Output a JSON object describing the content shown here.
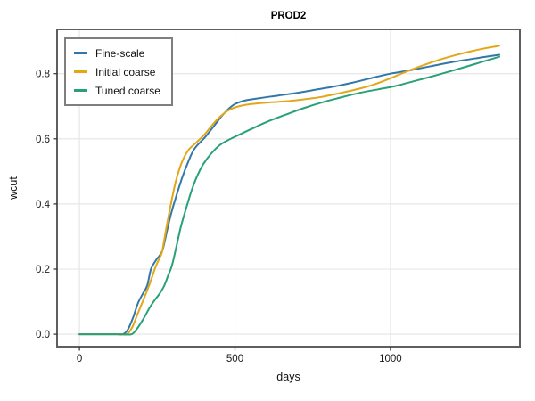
{
  "figure": {
    "title": "PROD2",
    "xlabel": "days",
    "ylabel": "wcut"
  },
  "style_colors": {
    "background": "#ffffff",
    "frame": "#5f5f5f",
    "grid": "#e4e4e4",
    "tick": "#2f2f2f",
    "text": "#1a1a1a",
    "legend_border": "#7f7f7f"
  },
  "chart_data": {
    "type": "line",
    "title": "PROD2",
    "xlabel": "days",
    "ylabel": "wcut",
    "xlim": [
      -72,
      1416
    ],
    "ylim": [
      -0.038,
      0.936
    ],
    "x_ticks": [
      0,
      500,
      1000
    ],
    "x_tick_labels": [
      "0",
      "500",
      "1000"
    ],
    "y_ticks": [
      0.0,
      0.2,
      0.4,
      0.6,
      0.8
    ],
    "y_tick_labels": [
      "0.0",
      "0.2",
      "0.4",
      "0.6",
      "0.8"
    ],
    "grid": true,
    "legend_position": "top-left",
    "series": [
      {
        "name": "Fine-scale",
        "color": "#3277a8",
        "points": [
          [
            0,
            0
          ],
          [
            70,
            0
          ],
          [
            120,
            0
          ],
          [
            140,
            0
          ],
          [
            156,
            0.015
          ],
          [
            172,
            0.05
          ],
          [
            188,
            0.095
          ],
          [
            204,
            0.125
          ],
          [
            218,
            0.15
          ],
          [
            230,
            0.2
          ],
          [
            248,
            0.23
          ],
          [
            266,
            0.255
          ],
          [
            282,
            0.32
          ],
          [
            296,
            0.375
          ],
          [
            310,
            0.42
          ],
          [
            330,
            0.48
          ],
          [
            350,
            0.53
          ],
          [
            370,
            0.57
          ],
          [
            404,
            0.605
          ],
          [
            433,
            0.64
          ],
          [
            463,
            0.676
          ],
          [
            495,
            0.704
          ],
          [
            530,
            0.717
          ],
          [
            580,
            0.725
          ],
          [
            640,
            0.733
          ],
          [
            700,
            0.741
          ],
          [
            760,
            0.751
          ],
          [
            820,
            0.761
          ],
          [
            880,
            0.773
          ],
          [
            940,
            0.787
          ],
          [
            1000,
            0.8
          ],
          [
            1060,
            0.81
          ],
          [
            1130,
            0.823
          ],
          [
            1200,
            0.836
          ],
          [
            1280,
            0.848
          ],
          [
            1350,
            0.858
          ]
        ]
      },
      {
        "name": "Initial coarse",
        "color": "#e3a617",
        "points": [
          [
            0,
            0
          ],
          [
            80,
            0
          ],
          [
            130,
            0
          ],
          [
            152,
            0
          ],
          [
            170,
            0.022
          ],
          [
            188,
            0.065
          ],
          [
            206,
            0.107
          ],
          [
            226,
            0.155
          ],
          [
            244,
            0.205
          ],
          [
            258,
            0.235
          ],
          [
            266,
            0.255
          ],
          [
            280,
            0.33
          ],
          [
            294,
            0.4
          ],
          [
            310,
            0.47
          ],
          [
            328,
            0.525
          ],
          [
            350,
            0.565
          ],
          [
            375,
            0.588
          ],
          [
            402,
            0.613
          ],
          [
            430,
            0.646
          ],
          [
            452,
            0.668
          ],
          [
            478,
            0.687
          ],
          [
            505,
            0.698
          ],
          [
            545,
            0.706
          ],
          [
            600,
            0.711
          ],
          [
            660,
            0.715
          ],
          [
            720,
            0.721
          ],
          [
            780,
            0.729
          ],
          [
            840,
            0.741
          ],
          [
            900,
            0.754
          ],
          [
            950,
            0.768
          ],
          [
            1000,
            0.786
          ],
          [
            1055,
            0.808
          ],
          [
            1120,
            0.831
          ],
          [
            1190,
            0.852
          ],
          [
            1260,
            0.869
          ],
          [
            1310,
            0.879
          ],
          [
            1350,
            0.886
          ]
        ]
      },
      {
        "name": "Tuned coarse",
        "color": "#28a176",
        "points": [
          [
            0,
            0
          ],
          [
            90,
            0
          ],
          [
            140,
            0
          ],
          [
            168,
            0
          ],
          [
            186,
            0.018
          ],
          [
            206,
            0.048
          ],
          [
            226,
            0.082
          ],
          [
            242,
            0.105
          ],
          [
            258,
            0.125
          ],
          [
            272,
            0.148
          ],
          [
            285,
            0.18
          ],
          [
            297,
            0.21
          ],
          [
            312,
            0.27
          ],
          [
            326,
            0.33
          ],
          [
            344,
            0.39
          ],
          [
            360,
            0.44
          ],
          [
            378,
            0.485
          ],
          [
            398,
            0.522
          ],
          [
            422,
            0.553
          ],
          [
            450,
            0.58
          ],
          [
            480,
            0.597
          ],
          [
            510,
            0.611
          ],
          [
            550,
            0.629
          ],
          [
            600,
            0.651
          ],
          [
            660,
            0.673
          ],
          [
            720,
            0.694
          ],
          [
            780,
            0.712
          ],
          [
            840,
            0.727
          ],
          [
            900,
            0.741
          ],
          [
            960,
            0.752
          ],
          [
            1010,
            0.761
          ],
          [
            1080,
            0.778
          ],
          [
            1150,
            0.796
          ],
          [
            1220,
            0.815
          ],
          [
            1290,
            0.835
          ],
          [
            1350,
            0.852
          ]
        ]
      }
    ]
  }
}
